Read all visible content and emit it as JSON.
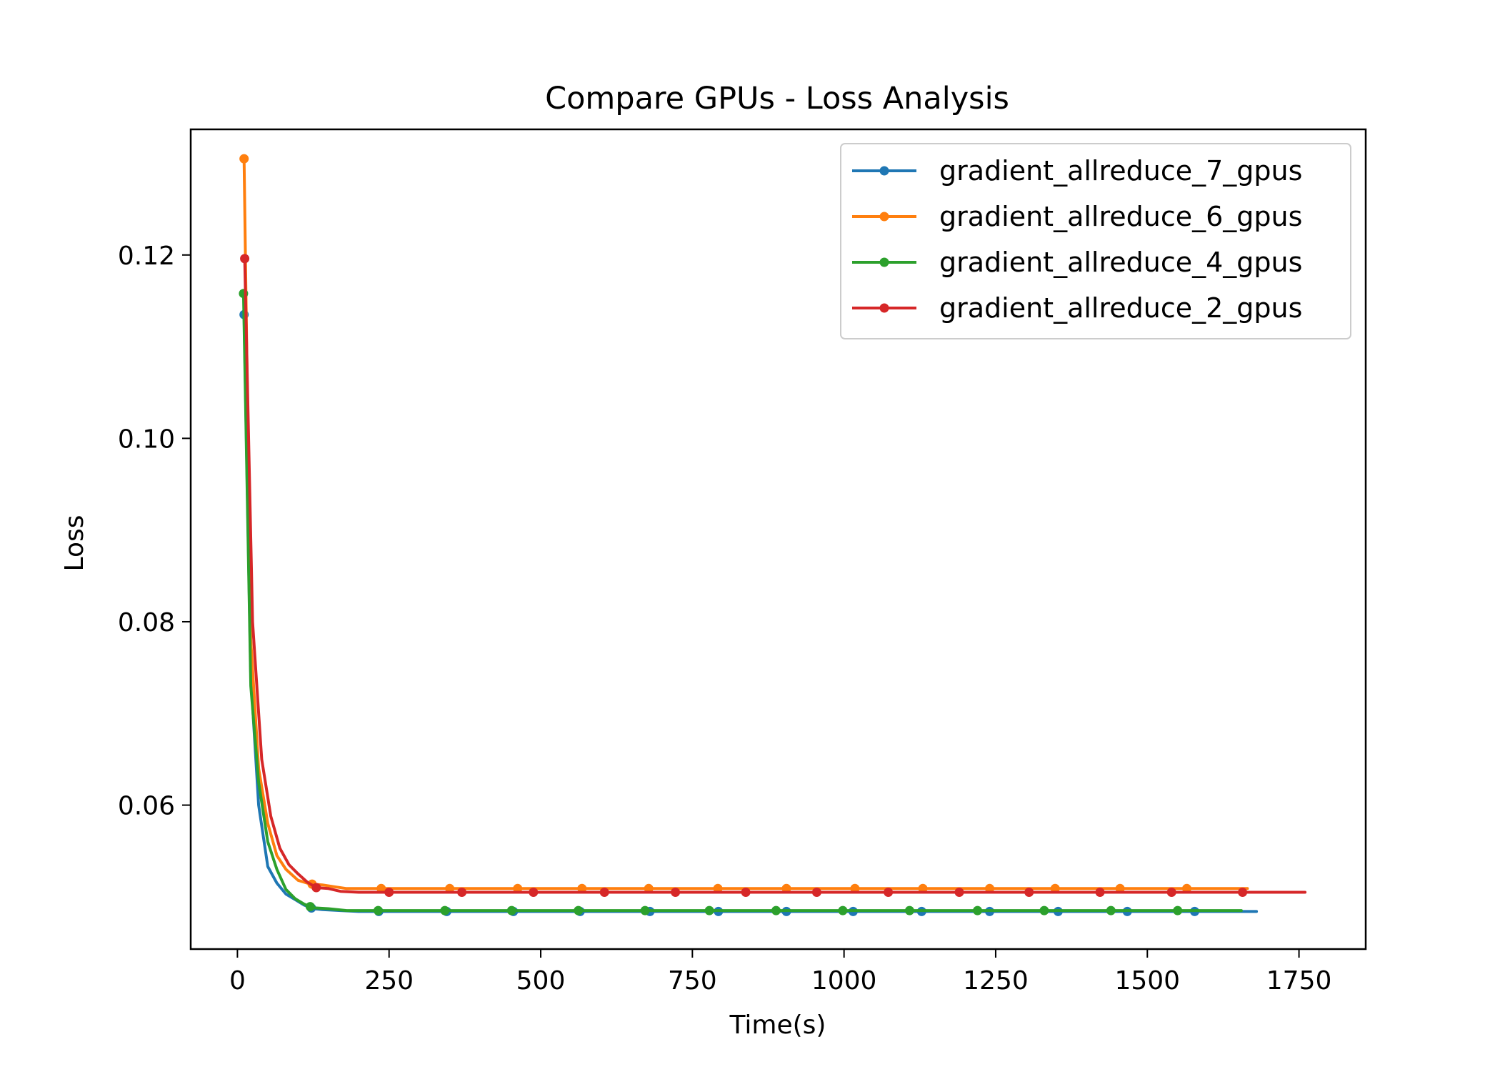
{
  "chart_data": {
    "type": "line",
    "title": "Compare GPUs - Loss Analysis",
    "xlabel": "Time(s)",
    "ylabel": "Loss",
    "xlim": [
      -77,
      1860
    ],
    "ylim": [
      0.0443,
      0.1337
    ],
    "xticks": [
      0,
      250,
      500,
      750,
      1000,
      1250,
      1500,
      1750
    ],
    "xtick_labels": [
      "0",
      "250",
      "500",
      "750",
      "1000",
      "1250",
      "1500",
      "1750"
    ],
    "yticks": [
      0.06,
      0.08,
      0.1,
      0.12
    ],
    "ytick_labels": [
      "0.06",
      "0.08",
      "0.10",
      "0.12"
    ],
    "grid": false,
    "legend_position": "top-right",
    "series": [
      {
        "name": "gradient_allreduce_7_gpus",
        "color": "#1f77b4",
        "x": [
          11,
          22,
          35,
          50,
          65,
          80,
          95,
          110,
          125,
          140,
          170,
          200,
          230,
          260,
          350,
          450,
          570,
          680,
          800,
          910,
          1020,
          1130,
          1240,
          1355,
          1470,
          1580,
          1680
        ],
        "y": [
          0.1135,
          0.074,
          0.06,
          0.0533,
          0.0515,
          0.0503,
          0.0497,
          0.0491,
          0.0487,
          0.0486,
          0.0485,
          0.0484,
          0.0484,
          0.0484,
          0.0484,
          0.0484,
          0.0484,
          0.0484,
          0.0484,
          0.0484,
          0.0484,
          0.0484,
          0.0484,
          0.0484,
          0.0484,
          0.0484,
          0.0484
        ],
        "markers": [
          11,
          122,
          233,
          345,
          455,
          565,
          680,
          793,
          905,
          1015,
          1128,
          1240,
          1353,
          1467,
          1578
        ]
      },
      {
        "name": "gradient_allreduce_6_gpus",
        "color": "#ff7f0e",
        "x": [
          11,
          22,
          35,
          50,
          65,
          80,
          100,
          120,
          140,
          160,
          180,
          240,
          350,
          460,
          570,
          680,
          790,
          900,
          1015,
          1125,
          1235,
          1345,
          1460,
          1565,
          1665
        ],
        "y": [
          0.1305,
          0.078,
          0.064,
          0.058,
          0.0545,
          0.053,
          0.0518,
          0.0514,
          0.0513,
          0.0511,
          0.0509,
          0.0509,
          0.0509,
          0.0509,
          0.0509,
          0.0509,
          0.0509,
          0.0509,
          0.0509,
          0.0509,
          0.0509,
          0.0509,
          0.0509,
          0.0509,
          0.0509
        ],
        "markers": [
          11,
          123,
          237,
          350,
          462,
          568,
          678,
          792,
          905,
          1018,
          1130,
          1240,
          1348,
          1455,
          1565
        ]
      },
      {
        "name": "gradient_allreduce_4_gpus",
        "color": "#2ca02c",
        "x": [
          10,
          22,
          35,
          50,
          65,
          80,
          95,
          110,
          125,
          150,
          180,
          230,
          340,
          450,
          560,
          670,
          780,
          890,
          1000,
          1110,
          1220,
          1330,
          1440,
          1550,
          1655
        ],
        "y": [
          0.1158,
          0.073,
          0.0625,
          0.056,
          0.053,
          0.0508,
          0.0498,
          0.0492,
          0.0488,
          0.0487,
          0.0485,
          0.0485,
          0.0485,
          0.0485,
          0.0485,
          0.0485,
          0.0485,
          0.0485,
          0.0485,
          0.0485,
          0.0485,
          0.0485,
          0.0485,
          0.0485,
          0.0485
        ],
        "markers": [
          10,
          120,
          232,
          342,
          452,
          562,
          672,
          778,
          888,
          998,
          1108,
          1220,
          1330,
          1440,
          1550
        ]
      },
      {
        "name": "gradient_allreduce_2_gpus",
        "color": "#d62728",
        "x": [
          12,
          25,
          40,
          55,
          70,
          85,
          100,
          115,
          130,
          150,
          170,
          200,
          255,
          370,
          490,
          605,
          720,
          840,
          955,
          1075,
          1190,
          1305,
          1425,
          1540,
          1660,
          1760
        ],
        "y": [
          0.1196,
          0.08,
          0.065,
          0.0588,
          0.0553,
          0.0535,
          0.0525,
          0.0516,
          0.051,
          0.0509,
          0.0506,
          0.0505,
          0.0505,
          0.0505,
          0.0505,
          0.0505,
          0.0505,
          0.0505,
          0.0505,
          0.0505,
          0.0505,
          0.0505,
          0.0505,
          0.0505,
          0.0505,
          0.0505
        ],
        "markers": [
          12,
          130,
          250,
          370,
          488,
          605,
          722,
          838,
          955,
          1073,
          1190,
          1305,
          1422,
          1540,
          1657
        ]
      }
    ]
  }
}
